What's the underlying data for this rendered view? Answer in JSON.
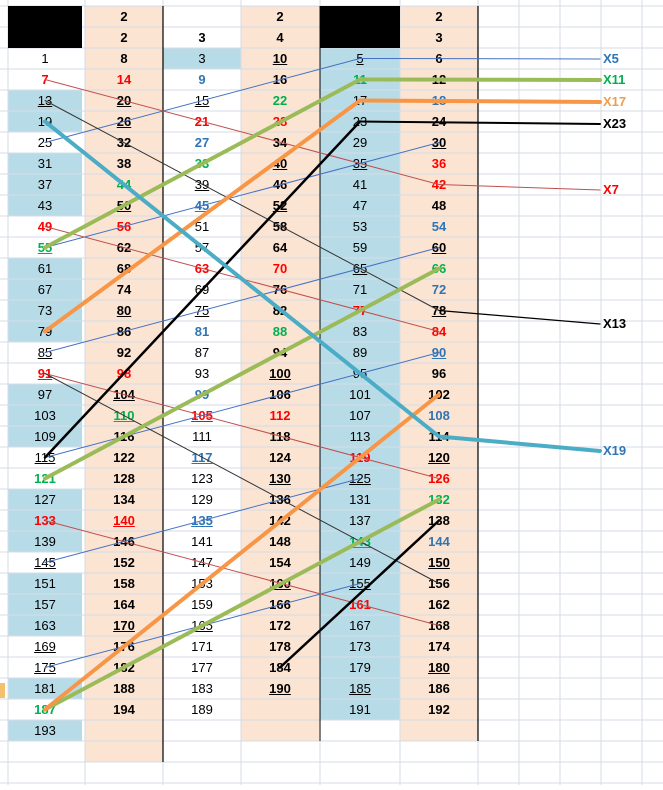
{
  "headers": {
    "colB_top": "2",
    "colC_top": "3",
    "colD_top": "2",
    "colF_top1": "2",
    "colF_top2": "3"
  },
  "colors": {
    "blue_fill": "#b7dce8",
    "peach_fill": "#fce4d3",
    "red": "#ff0000",
    "green": "#00b050",
    "blue": "#2e75b6",
    "black": "#000000"
  },
  "columns": {
    "A": [
      {
        "t": "1",
        "c": "k",
        "u": false,
        "b": false
      },
      {
        "t": "7",
        "c": "r",
        "u": false,
        "b": true
      },
      {
        "t": "13",
        "c": "k",
        "u": true,
        "b": false
      },
      {
        "t": "19",
        "c": "k",
        "u": false,
        "b": false
      },
      {
        "t": "25",
        "c": "k",
        "u": false,
        "b": false
      },
      {
        "t": "31",
        "c": "k",
        "u": false,
        "b": false
      },
      {
        "t": "37",
        "c": "k",
        "u": false,
        "b": false
      },
      {
        "t": "43",
        "c": "k",
        "u": false,
        "b": false
      },
      {
        "t": "49",
        "c": "r",
        "u": false,
        "b": true
      },
      {
        "t": "55",
        "c": "g",
        "u": true,
        "b": true
      },
      {
        "t": "61",
        "c": "k",
        "u": false,
        "b": false
      },
      {
        "t": "67",
        "c": "k",
        "u": false,
        "b": false
      },
      {
        "t": "73",
        "c": "k",
        "u": false,
        "b": false
      },
      {
        "t": "79",
        "c": "k",
        "u": false,
        "b": false
      },
      {
        "t": "85",
        "c": "k",
        "u": true,
        "b": false
      },
      {
        "t": "91",
        "c": "r",
        "u": true,
        "b": true
      },
      {
        "t": "97",
        "c": "k",
        "u": false,
        "b": false
      },
      {
        "t": "103",
        "c": "k",
        "u": false,
        "b": false
      },
      {
        "t": "109",
        "c": "k",
        "u": false,
        "b": false
      },
      {
        "t": "115",
        "c": "k",
        "u": true,
        "b": false
      },
      {
        "t": "121",
        "c": "g",
        "u": false,
        "b": true
      },
      {
        "t": "127",
        "c": "k",
        "u": false,
        "b": false
      },
      {
        "t": "133",
        "c": "r",
        "u": false,
        "b": true
      },
      {
        "t": "139",
        "c": "k",
        "u": false,
        "b": false
      },
      {
        "t": "145",
        "c": "k",
        "u": true,
        "b": false
      },
      {
        "t": "151",
        "c": "k",
        "u": false,
        "b": false
      },
      {
        "t": "157",
        "c": "k",
        "u": false,
        "b": false
      },
      {
        "t": "163",
        "c": "k",
        "u": false,
        "b": false
      },
      {
        "t": "169",
        "c": "k",
        "u": true,
        "b": false
      },
      {
        "t": "175",
        "c": "k",
        "u": true,
        "b": false
      },
      {
        "t": "181",
        "c": "k",
        "u": false,
        "b": false
      },
      {
        "t": "187",
        "c": "g",
        "u": false,
        "b": true
      },
      {
        "t": "193",
        "c": "k",
        "u": false,
        "b": false
      }
    ],
    "B": [
      {
        "t": "2",
        "c": "k",
        "u": false,
        "b": true
      },
      {
        "t": "8",
        "c": "k",
        "u": false,
        "b": true
      },
      {
        "t": "14",
        "c": "r",
        "u": false,
        "b": true
      },
      {
        "t": "20",
        "c": "k",
        "u": true,
        "b": true
      },
      {
        "t": "26",
        "c": "k",
        "u": true,
        "b": true
      },
      {
        "t": "32",
        "c": "k",
        "u": false,
        "b": true
      },
      {
        "t": "38",
        "c": "k",
        "u": false,
        "b": true
      },
      {
        "t": "44",
        "c": "g",
        "u": false,
        "b": true
      },
      {
        "t": "50",
        "c": "k",
        "u": true,
        "b": true
      },
      {
        "t": "56",
        "c": "r",
        "u": false,
        "b": true
      },
      {
        "t": "62",
        "c": "k",
        "u": false,
        "b": true
      },
      {
        "t": "68",
        "c": "k",
        "u": false,
        "b": true
      },
      {
        "t": "74",
        "c": "k",
        "u": false,
        "b": true
      },
      {
        "t": "80",
        "c": "k",
        "u": true,
        "b": true
      },
      {
        "t": "86",
        "c": "k",
        "u": false,
        "b": true
      },
      {
        "t": "92",
        "c": "k",
        "u": false,
        "b": true
      },
      {
        "t": "98",
        "c": "r",
        "u": false,
        "b": true
      },
      {
        "t": "104",
        "c": "k",
        "u": true,
        "b": true
      },
      {
        "t": "110",
        "c": "g",
        "u": true,
        "b": true
      },
      {
        "t": "116",
        "c": "k",
        "u": false,
        "b": true
      },
      {
        "t": "122",
        "c": "k",
        "u": false,
        "b": true
      },
      {
        "t": "128",
        "c": "k",
        "u": false,
        "b": true
      },
      {
        "t": "134",
        "c": "k",
        "u": false,
        "b": true
      },
      {
        "t": "140",
        "c": "r",
        "u": true,
        "b": true
      },
      {
        "t": "146",
        "c": "k",
        "u": false,
        "b": true
      },
      {
        "t": "152",
        "c": "k",
        "u": false,
        "b": true
      },
      {
        "t": "158",
        "c": "k",
        "u": false,
        "b": true
      },
      {
        "t": "164",
        "c": "k",
        "u": false,
        "b": true
      },
      {
        "t": "170",
        "c": "k",
        "u": true,
        "b": true
      },
      {
        "t": "176",
        "c": "k",
        "u": false,
        "b": true
      },
      {
        "t": "182",
        "c": "k",
        "u": false,
        "b": true
      },
      {
        "t": "188",
        "c": "k",
        "u": false,
        "b": true
      },
      {
        "t": "194",
        "c": "k",
        "u": false,
        "b": true
      }
    ],
    "C": [
      {
        "t": "3",
        "c": "k",
        "u": false,
        "b": false
      },
      {
        "t": "9",
        "c": "bl",
        "u": false,
        "b": true
      },
      {
        "t": "15",
        "c": "k",
        "u": true,
        "b": false
      },
      {
        "t": "21",
        "c": "r",
        "u": false,
        "b": true
      },
      {
        "t": "27",
        "c": "bl",
        "u": false,
        "b": true
      },
      {
        "t": "33",
        "c": "g",
        "u": false,
        "b": true
      },
      {
        "t": "39",
        "c": "k",
        "u": true,
        "b": false
      },
      {
        "t": "45",
        "c": "bl",
        "u": true,
        "b": true
      },
      {
        "t": "51",
        "c": "k",
        "u": false,
        "b": false
      },
      {
        "t": "57",
        "c": "k",
        "u": false,
        "b": false
      },
      {
        "t": "63",
        "c": "r",
        "u": false,
        "b": true
      },
      {
        "t": "69",
        "c": "k",
        "u": false,
        "b": false
      },
      {
        "t": "75",
        "c": "k",
        "u": true,
        "b": false
      },
      {
        "t": "81",
        "c": "bl",
        "u": false,
        "b": true
      },
      {
        "t": "87",
        "c": "k",
        "u": false,
        "b": false
      },
      {
        "t": "93",
        "c": "k",
        "u": false,
        "b": false
      },
      {
        "t": "99",
        "c": "bl",
        "u": false,
        "b": true
      },
      {
        "t": "105",
        "c": "r",
        "u": true,
        "b": true
      },
      {
        "t": "111",
        "c": "k",
        "u": false,
        "b": false
      },
      {
        "t": "117",
        "c": "bl",
        "u": true,
        "b": true
      },
      {
        "t": "123",
        "c": "k",
        "u": false,
        "b": false
      },
      {
        "t": "129",
        "c": "k",
        "u": false,
        "b": false
      },
      {
        "t": "135",
        "c": "bl",
        "u": true,
        "b": true
      },
      {
        "t": "141",
        "c": "k",
        "u": false,
        "b": false
      },
      {
        "t": "147",
        "c": "k",
        "u": false,
        "b": false
      },
      {
        "t": "153",
        "c": "k",
        "u": false,
        "b": false
      },
      {
        "t": "159",
        "c": "k",
        "u": false,
        "b": false
      },
      {
        "t": "165",
        "c": "k",
        "u": true,
        "b": false
      },
      {
        "t": "171",
        "c": "k",
        "u": false,
        "b": false
      },
      {
        "t": "177",
        "c": "k",
        "u": false,
        "b": false
      },
      {
        "t": "183",
        "c": "k",
        "u": false,
        "b": false
      },
      {
        "t": "189",
        "c": "k",
        "u": false,
        "b": false
      }
    ],
    "D": [
      {
        "t": "4",
        "c": "k",
        "u": false,
        "b": true
      },
      {
        "t": "10",
        "c": "k",
        "u": true,
        "b": true
      },
      {
        "t": "16",
        "c": "k",
        "u": false,
        "b": true
      },
      {
        "t": "22",
        "c": "g",
        "u": false,
        "b": true
      },
      {
        "t": "28",
        "c": "r",
        "u": false,
        "b": true
      },
      {
        "t": "34",
        "c": "k",
        "u": false,
        "b": true
      },
      {
        "t": "40",
        "c": "k",
        "u": true,
        "b": true
      },
      {
        "t": "46",
        "c": "k",
        "u": false,
        "b": true
      },
      {
        "t": "52",
        "c": "k",
        "u": true,
        "b": true
      },
      {
        "t": "58",
        "c": "k",
        "u": false,
        "b": true
      },
      {
        "t": "64",
        "c": "k",
        "u": false,
        "b": true
      },
      {
        "t": "70",
        "c": "r",
        "u": false,
        "b": true
      },
      {
        "t": "76",
        "c": "k",
        "u": false,
        "b": true
      },
      {
        "t": "82",
        "c": "k",
        "u": false,
        "b": true
      },
      {
        "t": "88",
        "c": "g",
        "u": false,
        "b": true
      },
      {
        "t": "94",
        "c": "k",
        "u": false,
        "b": true
      },
      {
        "t": "100",
        "c": "k",
        "u": true,
        "b": true
      },
      {
        "t": "106",
        "c": "k",
        "u": false,
        "b": true
      },
      {
        "t": "112",
        "c": "r",
        "u": false,
        "b": true
      },
      {
        "t": "118",
        "c": "k",
        "u": false,
        "b": true
      },
      {
        "t": "124",
        "c": "k",
        "u": false,
        "b": true
      },
      {
        "t": "130",
        "c": "k",
        "u": true,
        "b": true
      },
      {
        "t": "136",
        "c": "k",
        "u": false,
        "b": true
      },
      {
        "t": "142",
        "c": "k",
        "u": false,
        "b": true
      },
      {
        "t": "148",
        "c": "k",
        "u": false,
        "b": true
      },
      {
        "t": "154",
        "c": "k",
        "u": false,
        "b": true
      },
      {
        "t": "160",
        "c": "k",
        "u": true,
        "b": true
      },
      {
        "t": "166",
        "c": "k",
        "u": false,
        "b": true
      },
      {
        "t": "172",
        "c": "k",
        "u": false,
        "b": true
      },
      {
        "t": "178",
        "c": "k",
        "u": false,
        "b": true
      },
      {
        "t": "184",
        "c": "k",
        "u": false,
        "b": true
      },
      {
        "t": "190",
        "c": "k",
        "u": true,
        "b": true
      }
    ],
    "E": [
      {
        "t": "5",
        "c": "k",
        "u": true,
        "b": false
      },
      {
        "t": "11",
        "c": "g",
        "u": false,
        "b": true
      },
      {
        "t": "17",
        "c": "k",
        "u": false,
        "b": false
      },
      {
        "t": "23",
        "c": "k",
        "u": false,
        "b": false
      },
      {
        "t": "29",
        "c": "k",
        "u": false,
        "b": false
      },
      {
        "t": "35",
        "c": "k",
        "u": true,
        "b": false
      },
      {
        "t": "41",
        "c": "k",
        "u": false,
        "b": false
      },
      {
        "t": "47",
        "c": "k",
        "u": false,
        "b": false
      },
      {
        "t": "53",
        "c": "k",
        "u": false,
        "b": false
      },
      {
        "t": "59",
        "c": "k",
        "u": false,
        "b": false
      },
      {
        "t": "65",
        "c": "k",
        "u": true,
        "b": false
      },
      {
        "t": "71",
        "c": "k",
        "u": false,
        "b": false
      },
      {
        "t": "77",
        "c": "r",
        "u": false,
        "b": true
      },
      {
        "t": "83",
        "c": "k",
        "u": false,
        "b": false
      },
      {
        "t": "89",
        "c": "k",
        "u": false,
        "b": false
      },
      {
        "t": "95",
        "c": "k",
        "u": false,
        "b": false
      },
      {
        "t": "101",
        "c": "k",
        "u": false,
        "b": false
      },
      {
        "t": "107",
        "c": "k",
        "u": false,
        "b": false
      },
      {
        "t": "113",
        "c": "k",
        "u": false,
        "b": false
      },
      {
        "t": "119",
        "c": "r",
        "u": false,
        "b": true
      },
      {
        "t": "125",
        "c": "k",
        "u": true,
        "b": false
      },
      {
        "t": "131",
        "c": "k",
        "u": false,
        "b": false
      },
      {
        "t": "137",
        "c": "k",
        "u": false,
        "b": false
      },
      {
        "t": "143",
        "c": "g",
        "u": true,
        "b": true
      },
      {
        "t": "149",
        "c": "k",
        "u": false,
        "b": false
      },
      {
        "t": "155",
        "c": "k",
        "u": true,
        "b": false
      },
      {
        "t": "161",
        "c": "r",
        "u": false,
        "b": true
      },
      {
        "t": "167",
        "c": "k",
        "u": false,
        "b": false
      },
      {
        "t": "173",
        "c": "k",
        "u": false,
        "b": false
      },
      {
        "t": "179",
        "c": "k",
        "u": false,
        "b": false
      },
      {
        "t": "185",
        "c": "k",
        "u": true,
        "b": false
      },
      {
        "t": "191",
        "c": "k",
        "u": false,
        "b": false
      }
    ],
    "F": [
      {
        "t": "6",
        "c": "k",
        "u": false,
        "b": true
      },
      {
        "t": "12",
        "c": "k",
        "u": false,
        "b": true
      },
      {
        "t": "18",
        "c": "bl",
        "u": false,
        "b": true
      },
      {
        "t": "24",
        "c": "k",
        "u": false,
        "b": true
      },
      {
        "t": "30",
        "c": "k",
        "u": true,
        "b": true
      },
      {
        "t": "36",
        "c": "r",
        "u": false,
        "b": true
      },
      {
        "t": "42",
        "c": "r",
        "u": false,
        "b": true
      },
      {
        "t": "48",
        "c": "k",
        "u": false,
        "b": true
      },
      {
        "t": "54",
        "c": "bl",
        "u": false,
        "b": true
      },
      {
        "t": "60",
        "c": "k",
        "u": true,
        "b": true
      },
      {
        "t": "66",
        "c": "g",
        "u": false,
        "b": true
      },
      {
        "t": "72",
        "c": "bl",
        "u": false,
        "b": true
      },
      {
        "t": "78",
        "c": "k",
        "u": true,
        "b": true
      },
      {
        "t": "84",
        "c": "r",
        "u": false,
        "b": true
      },
      {
        "t": "90",
        "c": "bl",
        "u": true,
        "b": true
      },
      {
        "t": "96",
        "c": "k",
        "u": false,
        "b": true
      },
      {
        "t": "102",
        "c": "k",
        "u": false,
        "b": true
      },
      {
        "t": "108",
        "c": "bl",
        "u": false,
        "b": true
      },
      {
        "t": "114",
        "c": "k",
        "u": false,
        "b": true
      },
      {
        "t": "120",
        "c": "k",
        "u": true,
        "b": true
      },
      {
        "t": "126",
        "c": "r",
        "u": false,
        "b": true
      },
      {
        "t": "132",
        "c": "g",
        "u": false,
        "b": true
      },
      {
        "t": "138",
        "c": "k",
        "u": false,
        "b": true
      },
      {
        "t": "144",
        "c": "bl",
        "u": false,
        "b": true
      },
      {
        "t": "150",
        "c": "k",
        "u": true,
        "b": true
      },
      {
        "t": "156",
        "c": "k",
        "u": false,
        "b": true
      },
      {
        "t": "162",
        "c": "k",
        "u": false,
        "b": true
      },
      {
        "t": "168",
        "c": "k",
        "u": false,
        "b": true
      },
      {
        "t": "174",
        "c": "k",
        "u": false,
        "b": true
      },
      {
        "t": "180",
        "c": "k",
        "u": true,
        "b": true
      },
      {
        "t": "186",
        "c": "k",
        "u": false,
        "b": true
      },
      {
        "t": "192",
        "c": "k",
        "u": false,
        "b": true
      }
    ]
  },
  "blueRows": {
    "A": [
      2,
      3,
      5,
      6,
      7,
      10,
      11,
      12,
      13,
      16,
      17,
      18,
      21,
      22,
      23,
      25,
      26,
      27,
      30,
      32
    ],
    "C": [
      0
    ],
    "E": [
      0,
      1,
      2,
      3,
      4,
      5,
      6,
      7,
      8,
      9,
      10,
      11,
      12,
      13,
      14,
      15,
      16,
      17,
      18,
      19,
      20,
      21,
      22,
      23,
      24,
      25,
      26,
      27,
      28,
      29,
      30,
      31
    ]
  },
  "legend": [
    {
      "label": "X5",
      "color": "#2e75b6"
    },
    {
      "label": "X11",
      "color": "#00b050"
    },
    {
      "label": "X17",
      "color": "#ed9c4e"
    },
    {
      "label": "X23",
      "color": "#000000"
    },
    {
      "label": "X7",
      "color": "#ff0000"
    },
    {
      "label": "X13",
      "color": "#000000"
    },
    {
      "label": "X19",
      "color": "#2e75b6"
    }
  ]
}
